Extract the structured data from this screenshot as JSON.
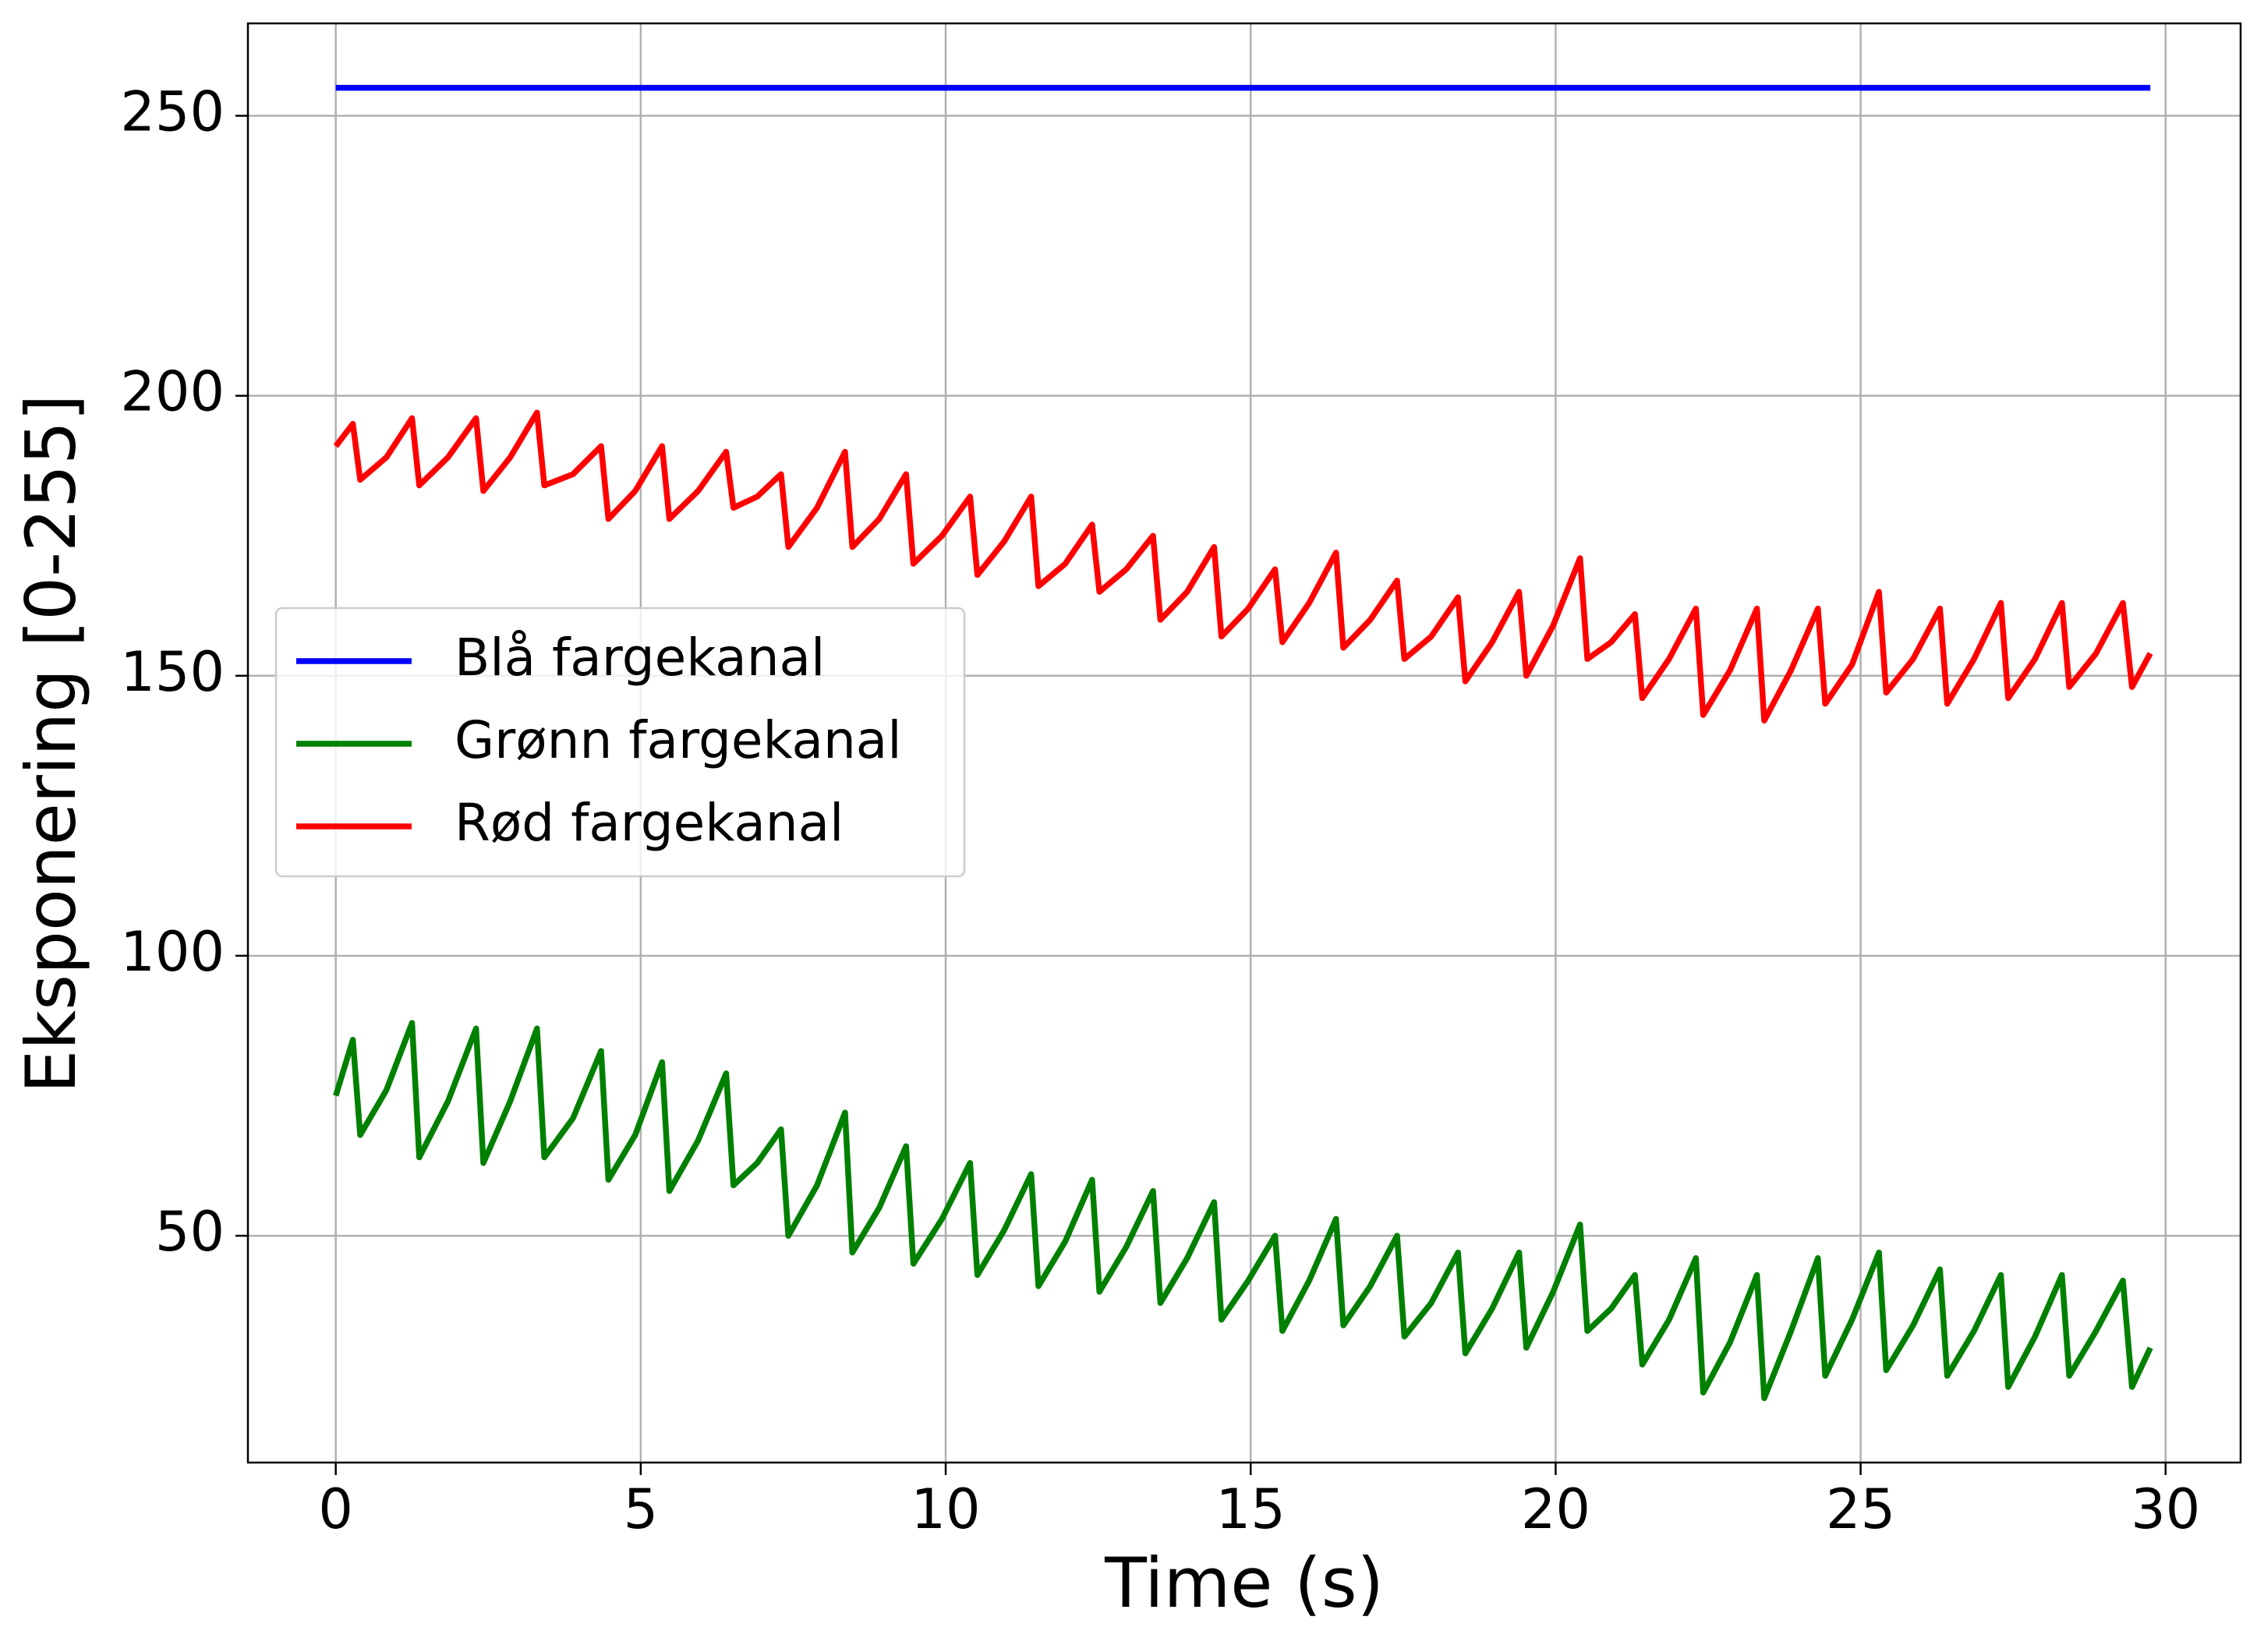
{
  "chart_data": {
    "type": "line",
    "x_label": "Time (s)",
    "y_label": "Eksponering [0-255]",
    "x": [
      0,
      0.28,
      0.4,
      0.83,
      1.25,
      1.37,
      1.84,
      2.3,
      2.42,
      2.86,
      3.3,
      3.42,
      3.89,
      4.35,
      4.47,
      4.91,
      5.35,
      5.47,
      5.94,
      6.4,
      6.52,
      6.91,
      7.3,
      7.42,
      7.89,
      8.35,
      8.47,
      8.91,
      9.35,
      9.47,
      9.94,
      10.4,
      10.52,
      10.96,
      11.4,
      11.52,
      11.96,
      12.4,
      12.52,
      12.96,
      13.4,
      13.52,
      13.96,
      14.4,
      14.52,
      14.96,
      15.4,
      15.52,
      15.96,
      16.4,
      16.52,
      16.96,
      17.4,
      17.52,
      17.96,
      18.4,
      18.52,
      18.96,
      19.4,
      19.52,
      19.96,
      20.4,
      20.52,
      20.91,
      21.3,
      21.42,
      21.86,
      22.3,
      22.42,
      22.86,
      23.3,
      23.42,
      23.86,
      24.3,
      24.42,
      24.86,
      25.3,
      25.42,
      25.86,
      26.3,
      26.42,
      26.86,
      27.3,
      27.42,
      27.86,
      28.3,
      28.42,
      28.86,
      29.3,
      29.45,
      29.75
    ],
    "series": [
      {
        "name": "Blå fargekanal",
        "color": "#0000ff",
        "x": [
          0,
          29.75
        ],
        "values": [
          255,
          255
        ]
      },
      {
        "name": "Grønn fargekanal",
        "color": "#008000",
        "values": [
          75,
          85,
          68,
          76,
          88,
          64,
          74,
          87,
          63,
          74,
          87,
          64,
          71,
          83,
          60,
          68,
          81,
          58,
          67,
          79,
          59,
          63,
          69,
          50,
          59,
          72,
          47,
          55,
          66,
          45,
          53,
          63,
          43,
          51,
          61,
          41,
          49,
          60,
          40,
          48,
          58,
          38,
          46,
          56,
          35,
          42,
          50,
          33,
          42,
          53,
          34,
          41,
          50,
          32,
          38,
          47,
          29,
          37,
          47,
          30,
          40,
          52,
          33,
          37,
          43,
          27,
          35,
          46,
          22,
          31,
          43,
          21,
          33,
          46,
          25,
          35,
          47,
          26,
          34,
          44,
          25,
          33,
          43,
          23,
          32,
          43,
          25,
          33,
          42,
          23,
          30
        ]
      },
      {
        "name": "Rød fargekanal",
        "color": "#ff0000",
        "values": [
          191,
          195,
          185,
          189,
          196,
          184,
          189,
          196,
          183,
          189,
          197,
          184,
          186,
          191,
          178,
          183,
          191,
          178,
          183,
          190,
          180,
          182,
          186,
          173,
          180,
          190,
          173,
          178,
          186,
          170,
          175,
          182,
          168,
          174,
          182,
          166,
          170,
          177,
          165,
          169,
          175,
          160,
          165,
          173,
          157,
          162,
          169,
          156,
          163,
          172,
          155,
          160,
          167,
          153,
          157,
          164,
          149,
          156,
          165,
          150,
          159,
          171,
          153,
          156,
          161,
          146,
          153,
          162,
          143,
          151,
          162,
          142,
          151,
          162,
          145,
          152,
          165,
          147,
          153,
          162,
          145,
          153,
          163,
          146,
          153,
          163,
          148,
          154,
          163,
          148,
          154
        ]
      }
    ],
    "xlim": [
      -1.44,
      31.23
    ],
    "ylim": [
      9.5,
      266.5
    ],
    "xticks": [
      0,
      5,
      10,
      15,
      20,
      25,
      30
    ],
    "yticks": [
      50,
      100,
      150,
      200,
      250
    ],
    "grid": true,
    "legend": "center left"
  }
}
